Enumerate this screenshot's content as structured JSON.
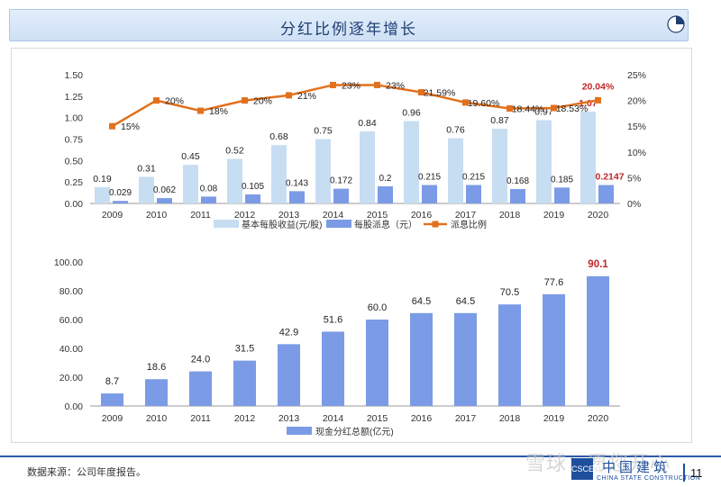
{
  "title": "分红比例逐年增长",
  "source_note": "数据来源：公司年度报告。",
  "watermark": "雪球：愿您开心",
  "brand": {
    "cn": "中国建筑",
    "en": "CHINA STATE CONSTRUCTION",
    "logo": "CSCEC"
  },
  "page_number": "11",
  "colors": {
    "eps": "#c7ddf2",
    "dps": "#7b9be6",
    "ratio": "#e2711d",
    "cash": "#7b9be6",
    "highlight": "#c0262b"
  },
  "chart_data": [
    {
      "type": "bar",
      "categories": [
        "2009",
        "2010",
        "2011",
        "2012",
        "2013",
        "2014",
        "2015",
        "2016",
        "2017",
        "2018",
        "2019",
        "2020"
      ],
      "series": [
        {
          "name": "基本每股收益(元/股)",
          "values": [
            0.19,
            0.31,
            0.45,
            0.52,
            0.68,
            0.75,
            0.84,
            0.96,
            0.76,
            0.87,
            0.97,
            1.07
          ],
          "labels": [
            "0.19",
            "0.31",
            "0.45",
            "0.52",
            "0.68",
            "0.75",
            "0.84",
            "0.96",
            "0.76",
            "0.87",
            "0.97",
            "1.07"
          ]
        },
        {
          "name": "每股派息（元）",
          "values": [
            0.029,
            0.062,
            0.08,
            0.105,
            0.143,
            0.172,
            0.2,
            0.215,
            0.215,
            0.168,
            0.185,
            0.2147
          ],
          "labels": [
            "0.029",
            "0.062",
            "0.08",
            "0.105",
            "0.143",
            "0.172",
            "0.2",
            "0.215",
            "0.215",
            "0.168",
            "0.185",
            "0.2147"
          ]
        },
        {
          "name": "派息比例",
          "type": "line",
          "axis": "right",
          "values": [
            15,
            20,
            18,
            20,
            21,
            23,
            23,
            21.59,
            19.6,
            18.44,
            18.53,
            20.04
          ],
          "labels": [
            "15%",
            "20%",
            "18%",
            "20%",
            "21%",
            "23%",
            "23%",
            "21.59%",
            "19.60%",
            "18.44%",
            "18.53%",
            "20.04%"
          ]
        }
      ],
      "left_axis": {
        "ylim": [
          0,
          1.5
        ],
        "ticks": [
          "0.00",
          "0.25",
          "0.50",
          "0.75",
          "1.00",
          "1.25",
          "1.50"
        ]
      },
      "right_axis": {
        "ylim": [
          0,
          25
        ],
        "ticks": [
          "0%",
          "5%",
          "10%",
          "15%",
          "20%",
          "25%"
        ]
      },
      "legend_position": "bottom"
    },
    {
      "type": "bar",
      "categories": [
        "2009",
        "2010",
        "2011",
        "2012",
        "2013",
        "2014",
        "2015",
        "2016",
        "2017",
        "2018",
        "2019",
        "2020"
      ],
      "series": [
        {
          "name": "现金分红总额(亿元)",
          "values": [
            8.7,
            18.6,
            24.0,
            31.5,
            42.9,
            51.6,
            60.0,
            64.5,
            64.5,
            70.5,
            77.6,
            90.1
          ],
          "labels": [
            "8.7",
            "18.6",
            "24.0",
            "31.5",
            "42.9",
            "51.6",
            "60.0",
            "64.5",
            "64.5",
            "70.5",
            "77.6",
            "90.1"
          ]
        }
      ],
      "left_axis": {
        "ylim": [
          0,
          100
        ],
        "ticks": [
          "0.00",
          "20.00",
          "40.00",
          "60.00",
          "80.00",
          "100.00"
        ]
      },
      "legend_position": "bottom"
    }
  ]
}
